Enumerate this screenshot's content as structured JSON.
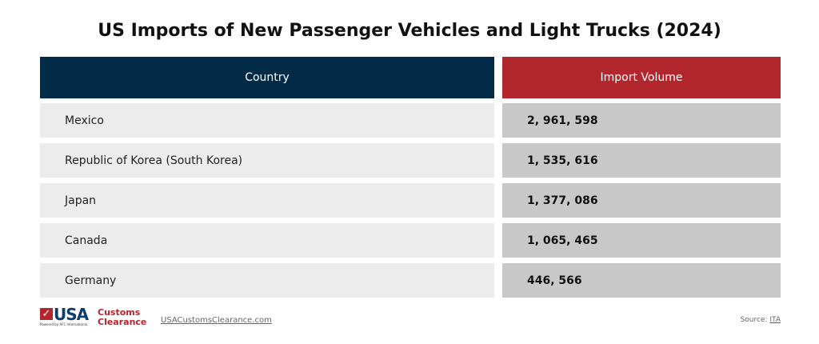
{
  "title": "US Imports of New Passenger Vehicles and Light Trucks (2024)",
  "table": {
    "headers": [
      "Country",
      "Import Volume"
    ],
    "header_colors": [
      "#022b48",
      "#b2262d"
    ],
    "rows": [
      {
        "country": "Mexico",
        "volume": "2, 961, 598"
      },
      {
        "country": "Republic of Korea (South Korea)",
        "volume": "1, 535, 616"
      },
      {
        "country": "Japan",
        "volume": "1, 377, 086"
      },
      {
        "country": "Canada",
        "volume": "1, 065, 465"
      },
      {
        "country": "Germany",
        "volume": "446, 566"
      }
    ]
  },
  "footer": {
    "logo_usa": "USA",
    "logo_customs": "Customs",
    "logo_clearance": "Clearance",
    "logo_powered": "Powered by AFC International",
    "site": "USACustomsClearance.com",
    "source_label": "Source: ",
    "source_link": "ITA"
  }
}
